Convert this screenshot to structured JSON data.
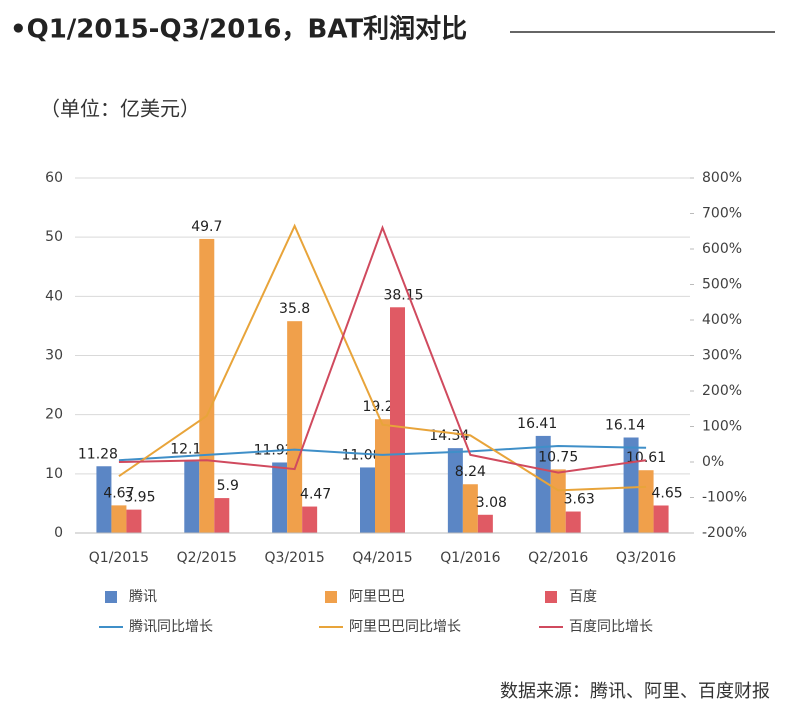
{
  "chart_data": {
    "type": "bar",
    "title": "•Q1/2015-Q3/2016，BAT利润对比",
    "subtitle": "（单位：亿美元）",
    "source": "数据来源：腾讯、阿里、百度财报",
    "categories": [
      "Q1/2015",
      "Q2/2015",
      "Q3/2015",
      "Q4/2015",
      "Q1/2016",
      "Q2/2016",
      "Q3/2016"
    ],
    "series": [
      {
        "name": "腾讯",
        "type": "bar",
        "color": "#5b86c5",
        "values": [
          11.28,
          12.1,
          11.92,
          11.08,
          14.34,
          16.41,
          16.14
        ]
      },
      {
        "name": "阿里巴巴",
        "type": "bar",
        "color": "#f0a04b",
        "values": [
          4.67,
          49.7,
          35.8,
          19.23,
          8.24,
          10.75,
          10.61
        ]
      },
      {
        "name": "百度",
        "type": "bar",
        "color": "#e05a64",
        "values": [
          3.95,
          5.9,
          4.47,
          38.15,
          3.08,
          3.63,
          4.65
        ]
      },
      {
        "name": "腾讯同比增长",
        "type": "line",
        "axis": "y2",
        "color": "#3f8fc8",
        "values": [
          5,
          20,
          35,
          20,
          30,
          45,
          40
        ]
      },
      {
        "name": "阿里巴巴同比增长",
        "type": "line",
        "axis": "y2",
        "color": "#e8a43a",
        "values": [
          -40,
          130,
          665,
          105,
          75,
          -80,
          -70
        ]
      },
      {
        "name": "百度同比增长",
        "type": "line",
        "axis": "y2",
        "color": "#d04a5e",
        "values": [
          0,
          5,
          -20,
          660,
          20,
          -30,
          5
        ]
      }
    ],
    "ylim": [
      0,
      60
    ],
    "yticks": [
      0,
      10,
      20,
      30,
      40,
      50,
      60
    ],
    "y2lim": [
      -200,
      800
    ],
    "y2ticks": [
      {
        "value": -200,
        "label": "-200%"
      },
      {
        "value": -100,
        "label": "-100%"
      },
      {
        "value": 0,
        "label": "0%"
      },
      {
        "value": 100,
        "label": "100%"
      },
      {
        "value": 200,
        "label": "200%"
      },
      {
        "value": 300,
        "label": "300%"
      },
      {
        "value": 400,
        "label": "400%"
      },
      {
        "value": 500,
        "label": "500%"
      },
      {
        "value": 600,
        "label": "600%"
      },
      {
        "value": 700,
        "label": "700%"
      },
      {
        "value": 800,
        "label": "800%"
      }
    ],
    "grid": true
  }
}
